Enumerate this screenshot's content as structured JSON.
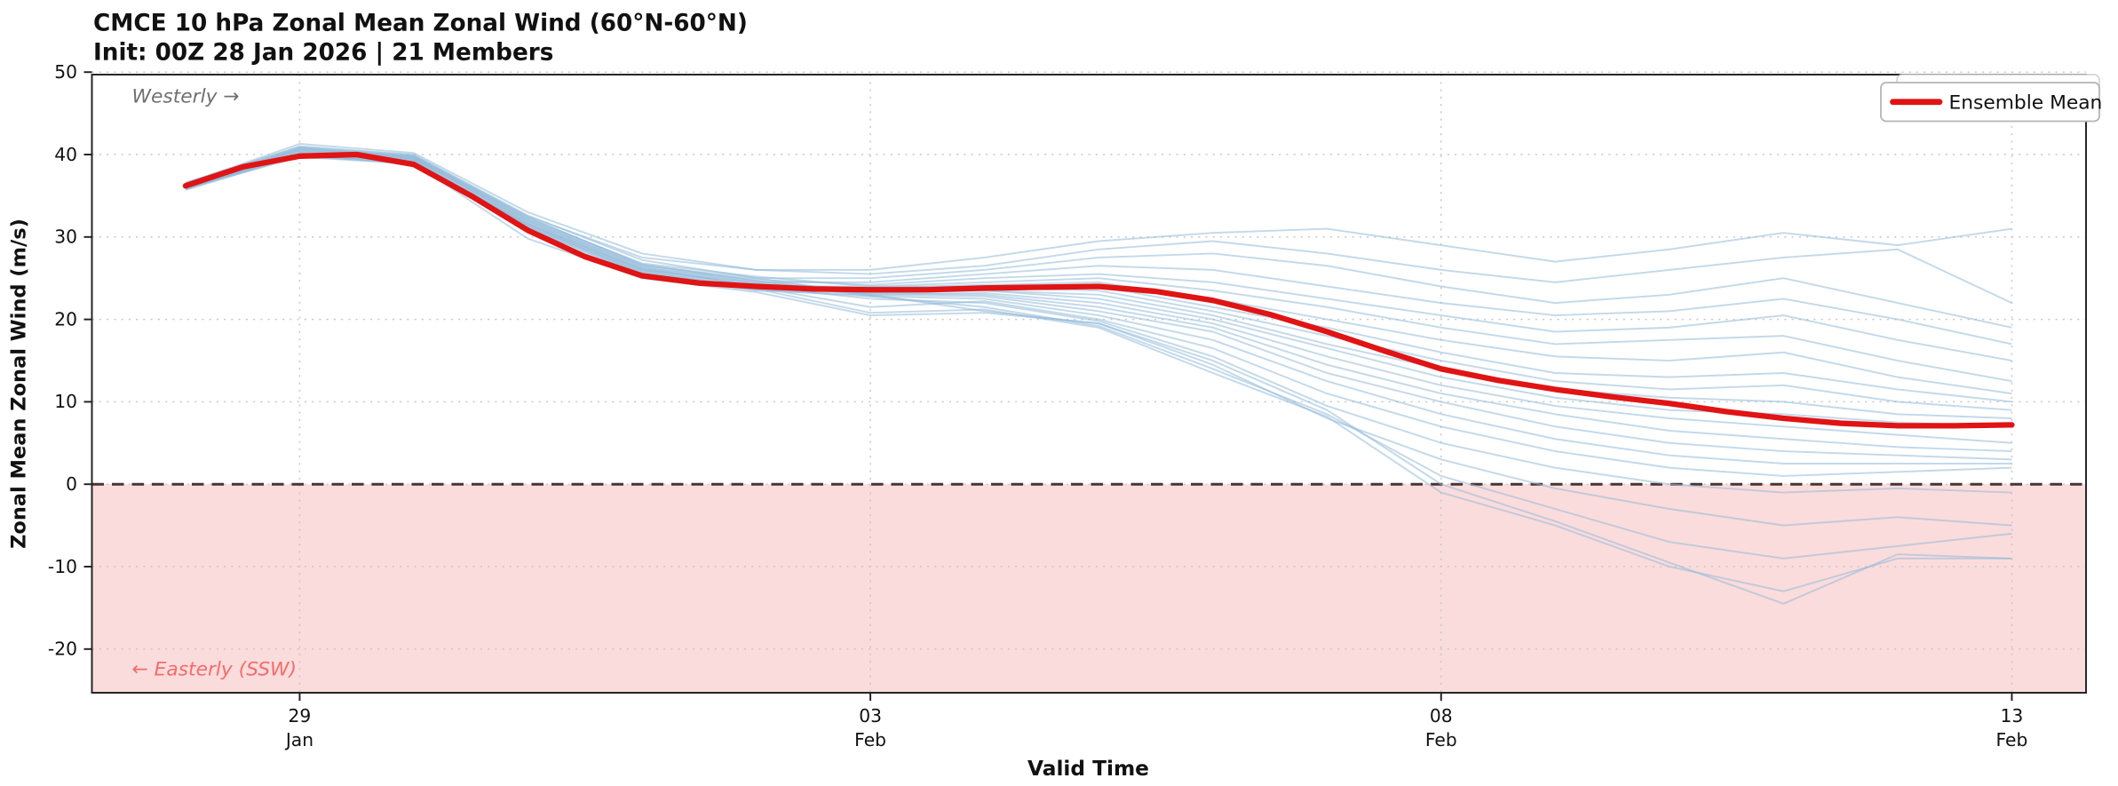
{
  "title": {
    "line1": "CMCE 10 hPa Zonal Mean Zonal Wind (60°N-60°N)",
    "line2": "Init: 00Z 28 Jan 2026 | 21 Members"
  },
  "annotations": {
    "westerly": "Westerly →",
    "easterly": "← Easterly (SSW)"
  },
  "legend": {
    "ensemble_mean": "Ensemble Mean"
  },
  "colors": {
    "mean": "#e01414",
    "member": "#92b9d9",
    "easterly_fill": "#fbdcdc",
    "zero_line": "#4a3434",
    "westerly_text": "#707070",
    "easterly_text": "#f56b6b",
    "grid": "#c4c4c4",
    "axis": "#222222",
    "tick_label": "#111111"
  },
  "chart_data": {
    "type": "line",
    "title": "CMCE 10 hPa Zonal Mean Zonal Wind (60°N-60°N) — Init: 00Z 28 Jan 2026 | 21 Members",
    "xlabel": "Valid Time",
    "ylabel": "Zonal Mean Zonal Wind (m/s)",
    "x_units": "days since 00Z 28 Jan 2026",
    "ylim": [
      -25.3,
      49.7
    ],
    "xlim_days": [
      -0.82,
      16.65
    ],
    "yticks": [
      -20,
      -10,
      0,
      10,
      20,
      30,
      40,
      50
    ],
    "xticks": [
      {
        "day": 1,
        "line1": "29",
        "line2": "Jan"
      },
      {
        "day": 6,
        "line1": "03",
        "line2": "Feb"
      },
      {
        "day": 11,
        "line1": "08",
        "line2": "Feb"
      },
      {
        "day": 16,
        "line1": "13",
        "line2": "Feb"
      }
    ],
    "grid": true,
    "legend_position": "upper right",
    "zero_line": {
      "y": 0,
      "style": "dashed"
    },
    "shaded_region": {
      "from": 0,
      "to": -25.3,
      "meaning": "Easterly (SSW)"
    },
    "ensemble_mean": {
      "x": [
        0,
        0.5,
        1,
        1.5,
        2,
        2.5,
        3,
        3.5,
        4,
        4.5,
        5,
        5.5,
        6,
        6.5,
        7,
        7.5,
        8,
        8.5,
        9,
        9.5,
        10,
        10.5,
        11,
        11.5,
        12,
        12.5,
        13,
        13.5,
        14,
        14.5,
        15,
        15.5,
        16
      ],
      "values": [
        36.2,
        38.5,
        39.8,
        40.0,
        38.8,
        35.0,
        30.8,
        27.6,
        25.3,
        24.4,
        24.0,
        23.7,
        23.6,
        23.6,
        23.8,
        23.9,
        24.0,
        23.4,
        22.3,
        20.6,
        18.5,
        16.2,
        14.0,
        12.6,
        11.5,
        10.6,
        9.8,
        8.8,
        8.0,
        7.4,
        7.1,
        7.1,
        7.2
      ]
    },
    "members": {
      "x": [
        0,
        1,
        2,
        3,
        4,
        5,
        6,
        7,
        8,
        9,
        10,
        11,
        12,
        13,
        14,
        15,
        16
      ],
      "series": [
        [
          36.2,
          40.8,
          39.8,
          32.5,
          27.5,
          26.0,
          26.0,
          27.5,
          29.5,
          30.5,
          31.0,
          29.0,
          27.0,
          28.5,
          30.5,
          29.0,
          31.0
        ],
        [
          36.5,
          41.3,
          40.2,
          33.0,
          28.0,
          26.0,
          25.5,
          26.5,
          28.5,
          29.5,
          28.0,
          26.0,
          24.5,
          26.0,
          27.5,
          28.5,
          22.0
        ],
        [
          35.8,
          40.2,
          39.5,
          32.0,
          26.5,
          25.0,
          25.0,
          26.0,
          27.5,
          28.0,
          26.5,
          24.0,
          22.0,
          23.0,
          25.0,
          22.0,
          19.0
        ],
        [
          36.0,
          40.0,
          39.2,
          31.5,
          26.0,
          24.5,
          24.5,
          25.5,
          26.5,
          26.0,
          24.0,
          22.0,
          20.5,
          21.0,
          22.5,
          20.0,
          17.0
        ],
        [
          36.3,
          40.5,
          39.6,
          31.8,
          26.2,
          24.8,
          24.2,
          25.0,
          25.5,
          24.5,
          22.5,
          20.5,
          18.5,
          19.0,
          20.5,
          17.5,
          15.0
        ],
        [
          36.1,
          39.8,
          39.0,
          31.0,
          25.5,
          24.0,
          24.0,
          24.5,
          25.0,
          23.5,
          21.5,
          19.0,
          17.0,
          17.5,
          18.0,
          15.0,
          12.5
        ],
        [
          35.9,
          40.1,
          39.3,
          31.2,
          25.8,
          24.2,
          23.8,
          24.2,
          24.5,
          22.5,
          20.0,
          17.5,
          15.5,
          15.0,
          16.0,
          13.0,
          11.0
        ],
        [
          36.4,
          40.6,
          39.7,
          32.2,
          26.8,
          25.2,
          24.0,
          24.0,
          24.0,
          21.5,
          19.0,
          16.0,
          13.5,
          13.0,
          13.5,
          11.5,
          10.0
        ],
        [
          36.0,
          40.3,
          39.4,
          31.6,
          26.0,
          24.3,
          23.5,
          23.8,
          23.5,
          21.0,
          18.0,
          15.0,
          12.5,
          11.5,
          12.0,
          10.0,
          9.0
        ],
        [
          36.2,
          40.0,
          39.1,
          31.4,
          25.6,
          23.8,
          23.2,
          23.5,
          23.0,
          20.5,
          17.0,
          14.0,
          11.5,
          10.5,
          10.0,
          8.5,
          8.0
        ],
        [
          36.6,
          40.9,
          39.9,
          32.4,
          26.6,
          24.6,
          23.5,
          23.5,
          22.5,
          20.0,
          16.5,
          13.0,
          10.5,
          9.0,
          8.5,
          7.5,
          7.0
        ],
        [
          35.7,
          39.9,
          38.8,
          30.8,
          25.2,
          23.5,
          23.0,
          23.2,
          22.0,
          19.5,
          15.5,
          12.0,
          9.5,
          8.0,
          7.0,
          6.0,
          5.0
        ],
        [
          36.1,
          40.4,
          39.5,
          31.7,
          26.1,
          24.1,
          23.2,
          23.0,
          21.5,
          19.0,
          14.5,
          11.0,
          8.5,
          6.5,
          5.5,
          4.5,
          4.0
        ],
        [
          36.3,
          40.7,
          39.8,
          32.1,
          26.4,
          24.4,
          23.0,
          22.8,
          21.0,
          18.5,
          13.5,
          10.0,
          7.0,
          5.0,
          4.0,
          3.5,
          3.0
        ],
        [
          35.8,
          40.0,
          39.0,
          31.1,
          25.4,
          23.6,
          22.8,
          22.5,
          20.5,
          17.5,
          12.5,
          8.5,
          5.5,
          3.5,
          2.5,
          2.5,
          2.5
        ],
        [
          36.0,
          40.2,
          39.3,
          31.3,
          25.7,
          23.9,
          21.5,
          22.2,
          20.0,
          16.5,
          11.0,
          7.0,
          4.0,
          2.0,
          1.0,
          1.5,
          2.0
        ],
        [
          36.2,
          40.5,
          39.6,
          31.9,
          26.3,
          24.0,
          22.5,
          22.0,
          19.8,
          15.5,
          9.5,
          5.0,
          2.0,
          0.0,
          -1.0,
          -0.5,
          -1.0
        ],
        [
          35.9,
          39.7,
          38.9,
          29.8,
          25.0,
          23.3,
          20.5,
          20.8,
          19.5,
          14.5,
          8.0,
          3.0,
          -0.5,
          -3.0,
          -5.0,
          -4.0,
          -5.0
        ],
        [
          36.4,
          40.8,
          39.7,
          32.3,
          26.7,
          24.7,
          22.8,
          21.5,
          19.2,
          14.0,
          8.5,
          1.0,
          -3.0,
          -7.0,
          -9.0,
          -7.5,
          -6.0
        ],
        [
          36.1,
          40.1,
          39.2,
          31.5,
          25.9,
          23.7,
          20.8,
          21.2,
          19.0,
          13.5,
          8.2,
          -1.0,
          -5.0,
          -10.0,
          -13.0,
          -9.0,
          -9.0
        ],
        [
          36.5,
          41.0,
          40.0,
          32.6,
          27.2,
          25.0,
          23.0,
          21.0,
          19.5,
          15.0,
          9.0,
          0.0,
          -4.5,
          -9.5,
          -14.5,
          -8.5,
          -9.0
        ]
      ]
    }
  }
}
